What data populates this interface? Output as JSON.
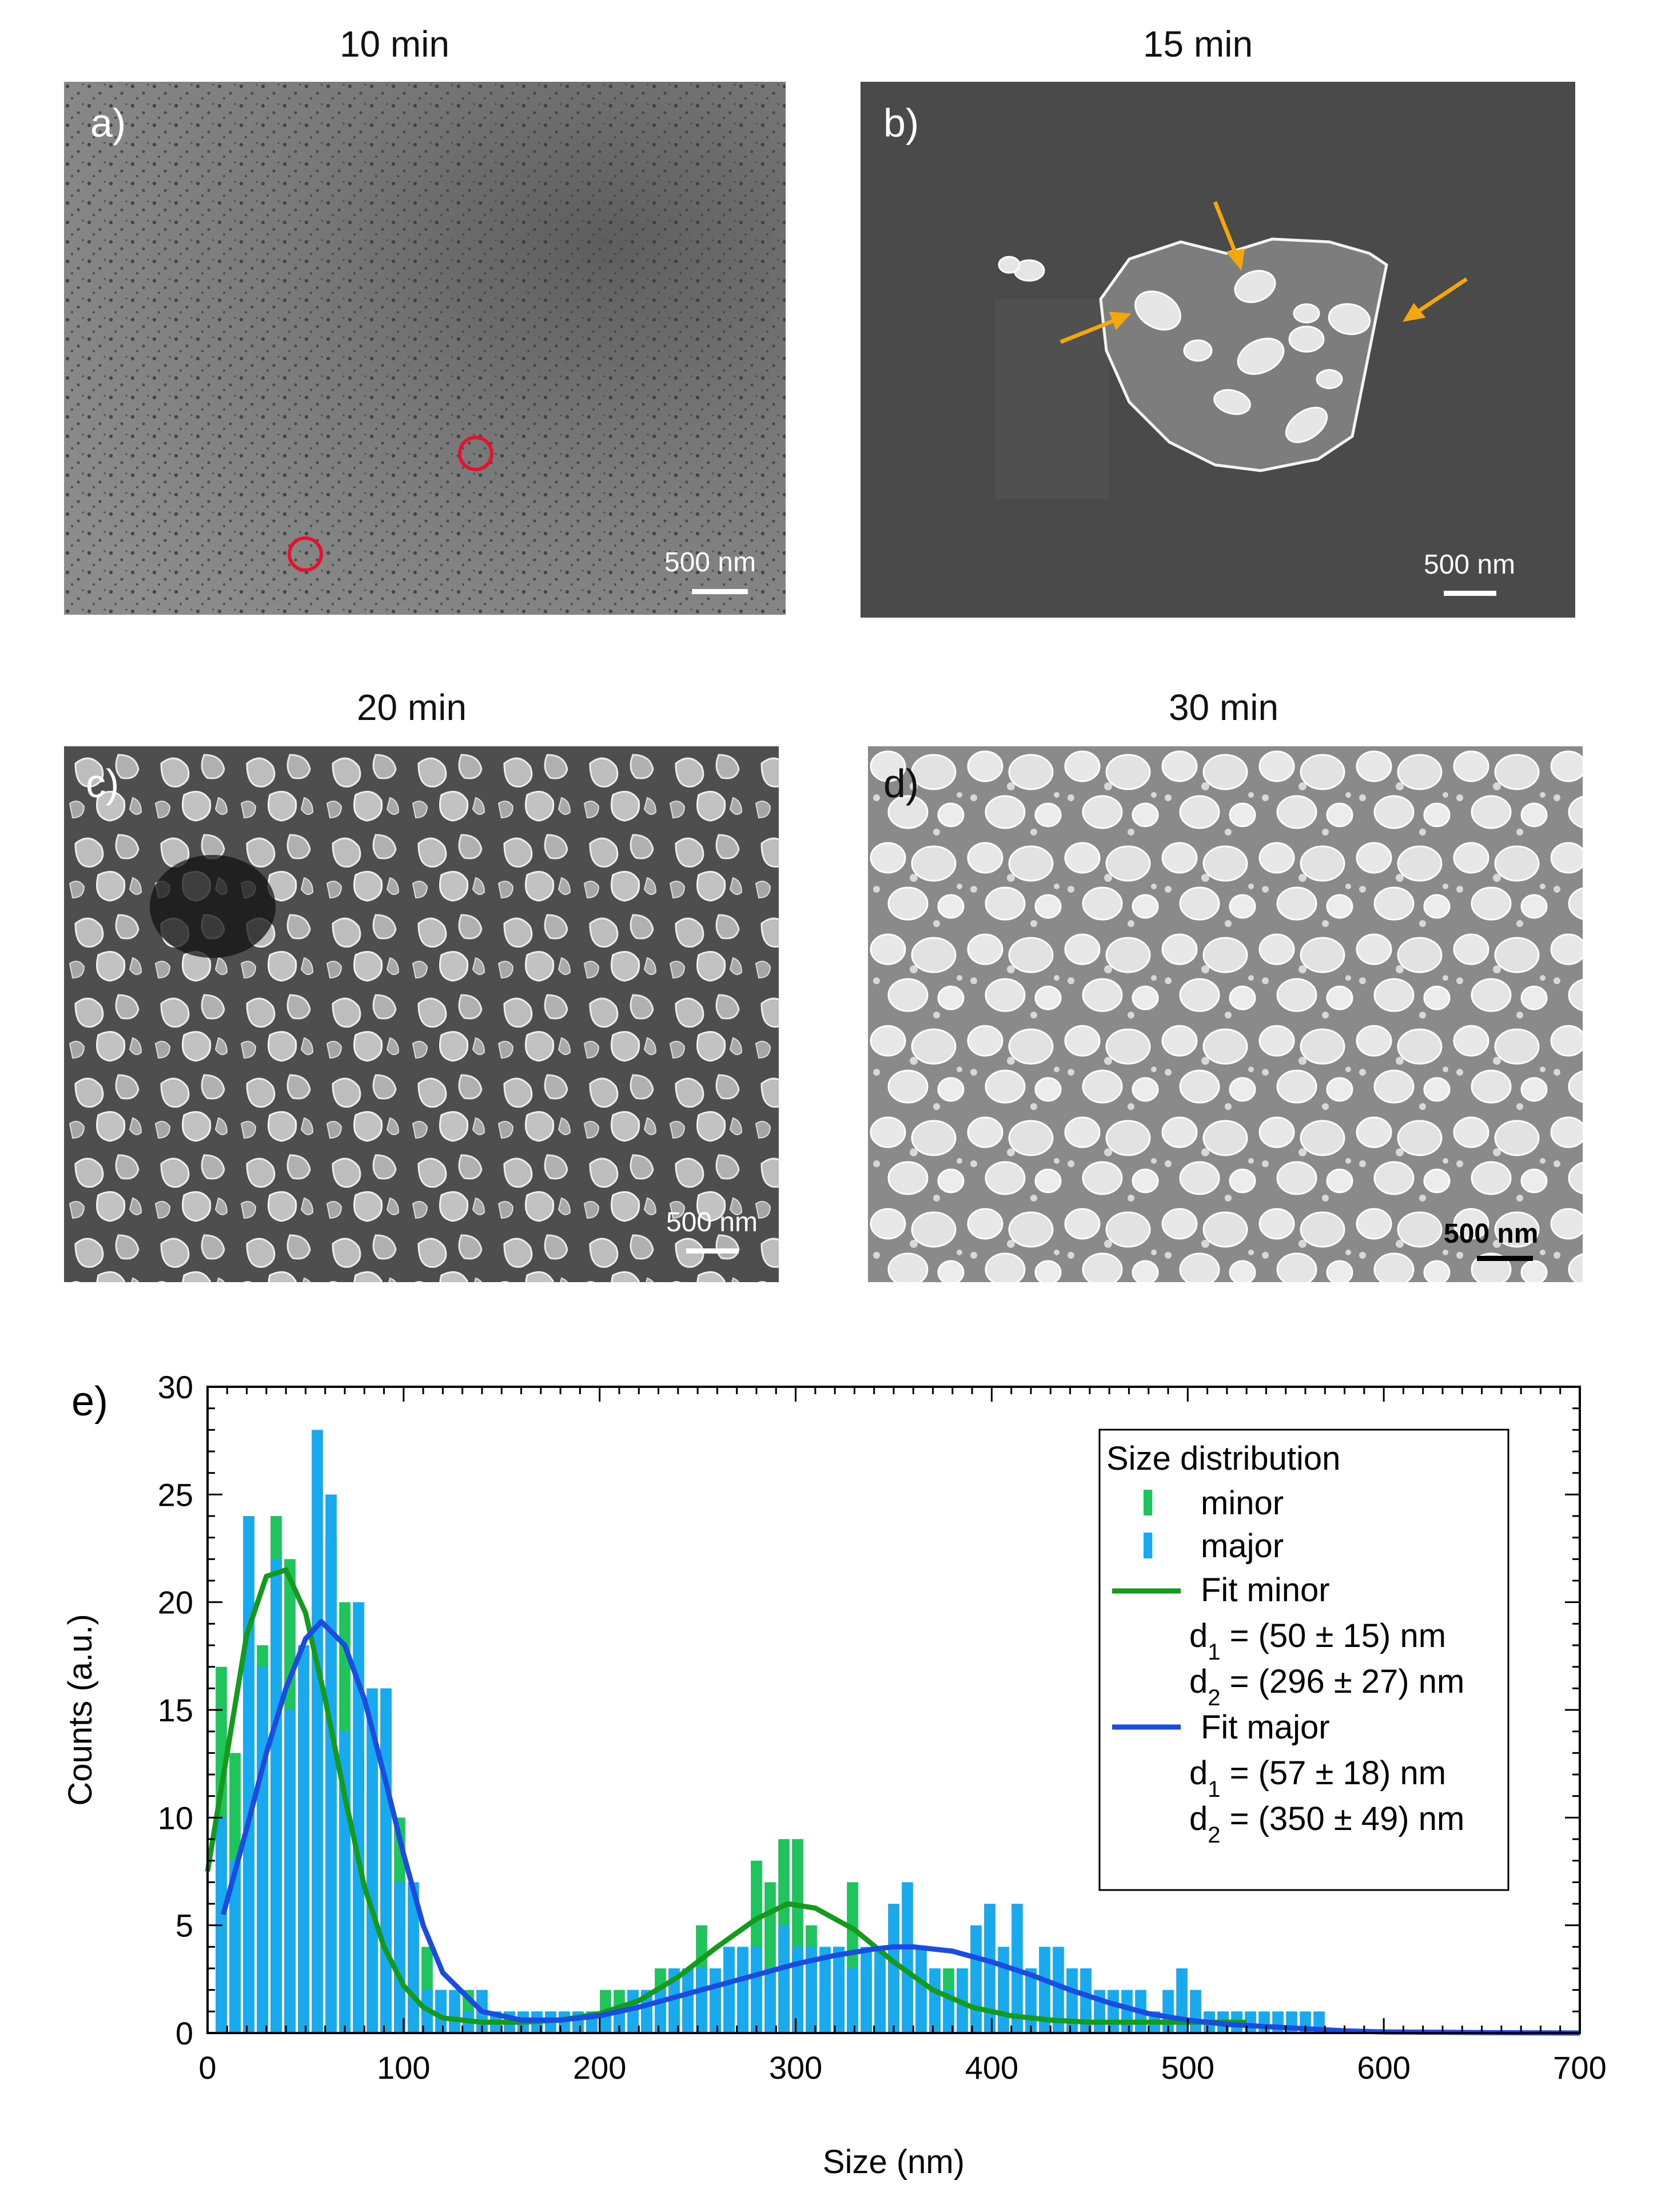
{
  "panels": [
    {
      "label": "a)",
      "title": "10 min",
      "scalebar": "500 nm"
    },
    {
      "label": "b)",
      "title": "15 min",
      "scalebar": "500 nm"
    },
    {
      "label": "c)",
      "title": "20 min",
      "scalebar": "500 nm"
    },
    {
      "label": "d)",
      "title": "30 min",
      "scalebar": "500 nm"
    }
  ],
  "colors": {
    "minor": "#1fc45c",
    "major": "#19a9ee",
    "fit_minor": "#149a1c",
    "fit_major": "#1a4ddf",
    "circle": "#e8102a",
    "arrow": "#f4a70a"
  },
  "chart_data": {
    "type": "bar",
    "panel_label": "e)",
    "xlabel": "Size (nm)",
    "ylabel": "Counts (a.u.)",
    "xlim": [
      0,
      700
    ],
    "ylim": [
      0,
      30
    ],
    "xticks": [
      0,
      100,
      200,
      300,
      400,
      500,
      600,
      700
    ],
    "yticks": [
      0,
      5,
      10,
      15,
      20,
      25,
      30
    ],
    "bin_width": 7,
    "legend": {
      "title": "Size distribution",
      "position": "top-right",
      "entries": [
        {
          "key": "minor",
          "label": "minor"
        },
        {
          "key": "major",
          "label": "major"
        },
        {
          "key": "fit_minor",
          "label": "Fit minor",
          "d1": "d1 = (50 ± 15) nm",
          "d2": "d2 = (296 ± 27) nm"
        },
        {
          "key": "fit_major",
          "label": "Fit major",
          "d1": "d1 = (57 ± 18) nm",
          "d2": "d2 = (350 ± 49) nm"
        }
      ]
    },
    "series": [
      {
        "name": "minor",
        "x": [
          7,
          14,
          21,
          28,
          35,
          42,
          49,
          56,
          63,
          70,
          77,
          84,
          91,
          98,
          105,
          112,
          119,
          126,
          133,
          140,
          147,
          154,
          161,
          168,
          175,
          182,
          189,
          196,
          203,
          210,
          217,
          224,
          231,
          238,
          245,
          252,
          259,
          266,
          273,
          280,
          287,
          294,
          301,
          308,
          315,
          322,
          329,
          336,
          343,
          350,
          357,
          364,
          371,
          378,
          385,
          392,
          399,
          406,
          413,
          420,
          427,
          434,
          441,
          448,
          455,
          462,
          469,
          476,
          483,
          490,
          497,
          504,
          511,
          518,
          525
        ],
        "values": [
          17,
          13,
          20,
          18,
          24,
          22,
          15,
          18,
          23,
          20,
          13,
          11,
          15,
          10,
          5,
          4,
          2,
          1,
          2,
          1,
          1,
          1,
          1,
          1,
          1,
          1,
          1,
          1,
          2,
          2,
          2,
          1,
          3,
          3,
          2,
          5,
          3,
          4,
          3,
          8,
          7,
          9,
          9,
          5,
          2,
          4,
          7,
          3,
          3,
          4,
          3,
          3,
          2,
          3,
          1,
          2,
          1,
          1,
          1,
          1,
          1,
          1,
          1,
          1,
          1,
          1,
          1,
          1,
          1,
          1,
          1,
          1,
          1,
          1,
          1
        ]
      },
      {
        "name": "major",
        "x": [
          7,
          14,
          21,
          28,
          35,
          42,
          49,
          56,
          63,
          70,
          77,
          84,
          91,
          98,
          105,
          112,
          119,
          126,
          133,
          140,
          147,
          154,
          161,
          168,
          175,
          182,
          189,
          196,
          203,
          210,
          217,
          224,
          231,
          238,
          245,
          252,
          259,
          266,
          273,
          280,
          287,
          294,
          301,
          308,
          315,
          322,
          329,
          336,
          343,
          350,
          357,
          364,
          371,
          378,
          385,
          392,
          399,
          406,
          413,
          420,
          427,
          434,
          441,
          448,
          455,
          462,
          469,
          476,
          483,
          490,
          497,
          504,
          511,
          518,
          525,
          532,
          539,
          546,
          553,
          560,
          567
        ],
        "values": [
          10,
          8,
          24,
          17,
          22,
          15,
          18,
          28,
          25,
          14,
          20,
          16,
          16,
          7,
          7,
          2,
          2,
          2,
          1,
          2,
          1,
          1,
          1,
          1,
          1,
          1,
          1,
          1,
          1,
          1,
          2,
          2,
          2,
          3,
          3,
          3,
          3,
          4,
          4,
          4,
          3,
          5,
          4,
          4,
          4,
          4,
          3,
          4,
          4,
          6,
          7,
          4,
          3,
          2,
          3,
          5,
          6,
          4,
          6,
          3,
          4,
          4,
          3,
          3,
          2,
          2,
          2,
          2,
          1,
          2,
          3,
          2,
          1,
          1,
          1,
          1,
          1,
          1,
          1,
          1,
          1
        ]
      },
      {
        "name": "Fit minor",
        "type": "line",
        "x": [
          0,
          10,
          20,
          30,
          40,
          50,
          60,
          70,
          80,
          90,
          100,
          110,
          120,
          140,
          160,
          180,
          200,
          220,
          240,
          260,
          280,
          296,
          310,
          330,
          350,
          370,
          390,
          410,
          430,
          450,
          470,
          490,
          510,
          530
        ],
        "values": [
          7.5,
          13,
          18.5,
          21.2,
          21.5,
          19.5,
          15.5,
          11,
          6.8,
          4,
          2.2,
          1.2,
          0.7,
          0.5,
          0.5,
          0.6,
          0.9,
          1.5,
          2.6,
          4,
          5.3,
          6,
          5.8,
          4.8,
          3.3,
          2,
          1.2,
          0.8,
          0.6,
          0.5,
          0.5,
          0.5,
          0.5,
          0.5
        ]
      },
      {
        "name": "Fit major",
        "type": "line",
        "x": [
          8,
          20,
          30,
          40,
          50,
          58,
          70,
          80,
          90,
          100,
          110,
          120,
          140,
          160,
          180,
          200,
          220,
          240,
          260,
          280,
          300,
          320,
          340,
          350,
          360,
          380,
          400,
          420,
          440,
          460,
          480,
          500,
          520,
          540,
          560,
          580,
          600,
          650,
          700
        ],
        "values": [
          5.5,
          9.5,
          13,
          16,
          18.3,
          19.1,
          18,
          15.5,
          12,
          8.3,
          5,
          2.8,
          1,
          0.6,
          0.6,
          0.8,
          1.2,
          1.7,
          2.2,
          2.7,
          3.2,
          3.6,
          3.9,
          4,
          4,
          3.8,
          3.3,
          2.7,
          2,
          1.4,
          0.9,
          0.6,
          0.4,
          0.3,
          0.2,
          0.1,
          0.05,
          0.02,
          0
        ]
      }
    ]
  }
}
